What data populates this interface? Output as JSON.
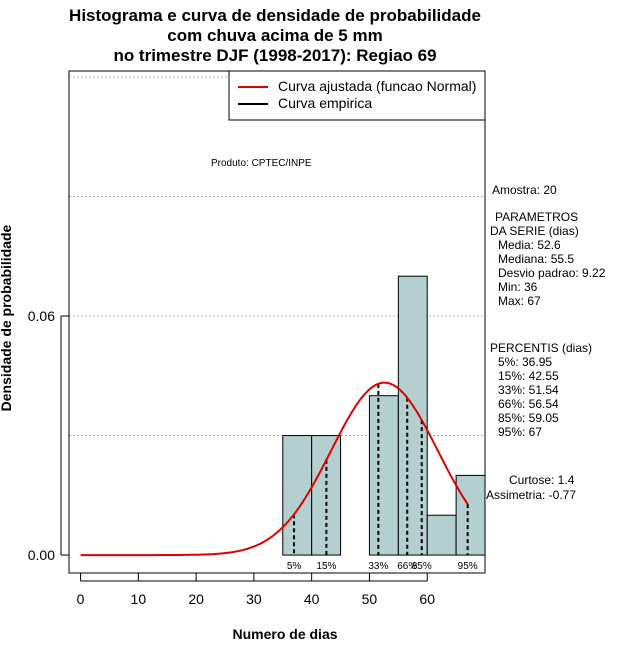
{
  "chart_data": {
    "type": "bar",
    "title_lines": [
      "Histograma e curva de densidade de probabilidade",
      "com chuva acima de 5 mm",
      "no trimestre DJF (1998-2017): Regiao 69"
    ],
    "xlabel": "Numero de dias",
    "ylabel": "Densidade de probabilidade",
    "xlim": [
      -2,
      70
    ],
    "ylim": [
      -0.0045,
      0.1215
    ],
    "x_ticks": [
      "0",
      "10",
      "20",
      "30",
      "40",
      "50",
      "60"
    ],
    "y_ticks": [
      "0.00",
      "0.06"
    ],
    "hist": {
      "bins": [
        35,
        40,
        45,
        50,
        55,
        60,
        65,
        70
      ],
      "density": [
        0.03,
        0.03,
        0.0,
        0.04,
        0.07,
        0.01,
        0.02
      ],
      "color": "#b4cfcf"
    },
    "normal_curve": {
      "mean": 52.6,
      "sd": 9.22,
      "x_from": 0,
      "x_to": 67,
      "color": "#e00000",
      "name": "Curva ajustada (funcao Normal)"
    },
    "empirical_curve": {
      "name": "Curva empirica",
      "color": "#000000"
    },
    "percentile_lines": [
      {
        "label": "5%",
        "x": 36.95
      },
      {
        "label": "15%",
        "x": 42.55
      },
      {
        "label": "33%",
        "x": 51.54
      },
      {
        "label": "66%",
        "x": 56.54
      },
      {
        "label": "85%",
        "x": 59.05
      },
      {
        "label": "95%",
        "x": 67
      }
    ],
    "grid": true
  },
  "produto": "Produto: CPTEC/INPE",
  "stats": {
    "amostra": "Amostra: 20",
    "param_lines": [
      "PARAMETROS",
      "DA SERIE (dias)",
      "Media: 52.6",
      "Mediana: 55.5",
      "Desvio padrao: 9.22",
      "Min: 36",
      "Max: 67"
    ],
    "percentil_lines": [
      "PERCENTIS (dias)",
      "5%: 36.95",
      "15%: 42.55",
      "33%: 51.54",
      "66%: 56.54",
      "85%: 59.05",
      "95%: 67"
    ],
    "curtose": "Curtose: 1.4",
    "assimetria": "Assimetria: -0.77"
  }
}
